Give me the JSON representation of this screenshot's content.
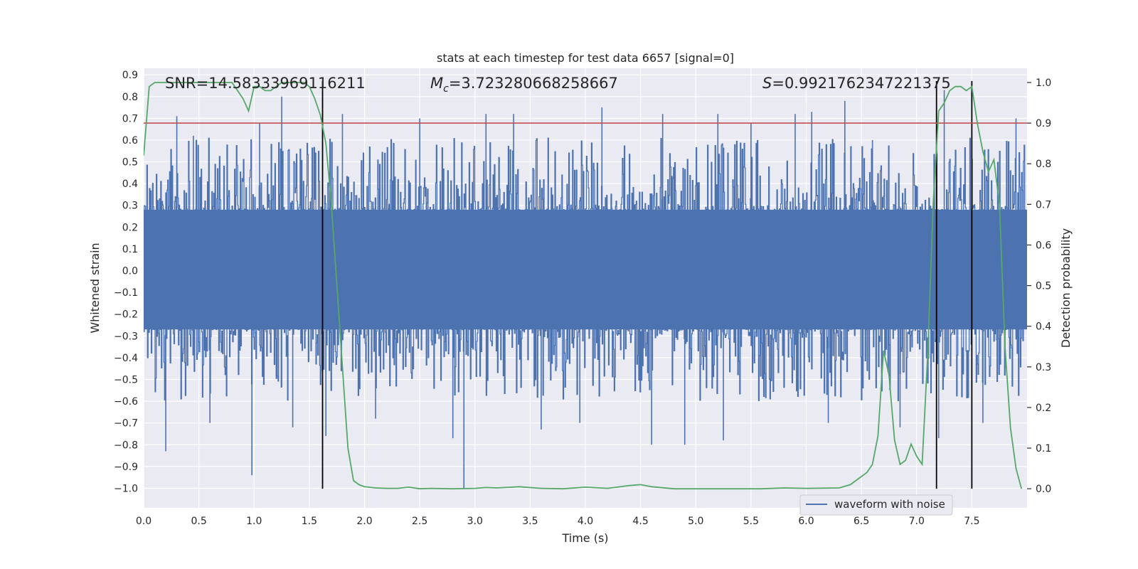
{
  "chart_data": {
    "type": "line",
    "title": "stats at each timestep for test data 6657 [signal=0]",
    "xlabel": "Time (s)",
    "ylabel_left": "Whitened strain",
    "ylabel_right": "Detection probability",
    "xlim": [
      0.0,
      8.0
    ],
    "ylim_left": [
      -1.09,
      0.93
    ],
    "ylim_right": [
      -0.047,
      1.035
    ],
    "x_ticks": [
      "0.0",
      "0.5",
      "1.0",
      "1.5",
      "2.0",
      "2.5",
      "3.0",
      "3.5",
      "4.0",
      "4.5",
      "5.0",
      "5.5",
      "6.0",
      "6.5",
      "7.0",
      "7.5"
    ],
    "x_tick_values": [
      0.0,
      0.5,
      1.0,
      1.5,
      2.0,
      2.5,
      3.0,
      3.5,
      4.0,
      4.5,
      5.0,
      5.5,
      6.0,
      6.5,
      7.0,
      7.5
    ],
    "y_left_ticks": [
      "0.9",
      "0.8",
      "0.7",
      "0.6",
      "0.5",
      "0.4",
      "0.3",
      "0.2",
      "0.1",
      "0.0",
      "−0.1",
      "−0.2",
      "−0.3",
      "−0.4",
      "−0.5",
      "−0.6",
      "−0.7",
      "−0.8",
      "−0.9",
      "−1.0"
    ],
    "y_left_tick_values": [
      0.9,
      0.8,
      0.7,
      0.6,
      0.5,
      0.4,
      0.3,
      0.2,
      0.1,
      0.0,
      -0.1,
      -0.2,
      -0.3,
      -0.4,
      -0.5,
      -0.6,
      -0.7,
      -0.8,
      -0.9,
      -1.0
    ],
    "y_right_ticks": [
      "1.0",
      "0.9",
      "0.8",
      "0.7",
      "0.6",
      "0.5",
      "0.4",
      "0.3",
      "0.2",
      "0.1",
      "0.0"
    ],
    "y_right_tick_values": [
      1.0,
      0.9,
      0.8,
      0.7,
      0.6,
      0.5,
      0.4,
      0.3,
      0.2,
      0.1,
      0.0
    ],
    "annotations": {
      "snr": "SNR=14.58333969116211",
      "mc_symbol": "M",
      "mc_sub": "c",
      "mc_value": "=3.723280668258667",
      "s_symbol": "S",
      "s_value": "=0.9921762347221375"
    },
    "legend": {
      "label": "waveform with noise",
      "placement": "lower-right"
    },
    "threshold": {
      "value": 0.9,
      "axis": "right",
      "color": "#c44e52"
    },
    "vlines": [
      1.62,
      7.18,
      7.5
    ],
    "vline_color": "#000000",
    "waveform": {
      "name": "waveform with noise",
      "color": "#4c72b0",
      "t_start": 0.0,
      "t_end": 7.99,
      "samples": 1400,
      "band_top": 0.28,
      "band_bottom": -0.27,
      "spikes": [
        {
          "t": 0.2,
          "v": -0.83
        },
        {
          "t": 0.3,
          "v": 0.71
        },
        {
          "t": 0.45,
          "v": 0.62
        },
        {
          "t": 0.6,
          "v": -0.7
        },
        {
          "t": 0.98,
          "v": -0.94
        },
        {
          "t": 1.05,
          "v": 0.68
        },
        {
          "t": 1.25,
          "v": 0.8
        },
        {
          "t": 1.35,
          "v": -0.72
        },
        {
          "t": 1.65,
          "v": -0.76
        },
        {
          "t": 1.8,
          "v": 0.72
        },
        {
          "t": 2.1,
          "v": -0.68
        },
        {
          "t": 2.5,
          "v": 0.7
        },
        {
          "t": 2.8,
          "v": -0.77
        },
        {
          "t": 2.9,
          "v": -1.0
        },
        {
          "t": 3.1,
          "v": 0.72
        },
        {
          "t": 3.35,
          "v": 0.72
        },
        {
          "t": 3.6,
          "v": -0.73
        },
        {
          "t": 3.95,
          "v": -0.7
        },
        {
          "t": 4.15,
          "v": 0.75
        },
        {
          "t": 4.6,
          "v": -0.8
        },
        {
          "t": 4.7,
          "v": 0.72
        },
        {
          "t": 4.9,
          "v": -0.8
        },
        {
          "t": 5.2,
          "v": 0.72
        },
        {
          "t": 5.25,
          "v": -0.78
        },
        {
          "t": 5.5,
          "v": 0.68
        },
        {
          "t": 5.9,
          "v": 0.72
        },
        {
          "t": 6.05,
          "v": 0.73
        },
        {
          "t": 6.2,
          "v": -0.7
        },
        {
          "t": 6.35,
          "v": 0.78
        },
        {
          "t": 6.6,
          "v": 0.6
        },
        {
          "t": 6.85,
          "v": -0.72
        },
        {
          "t": 7.2,
          "v": -0.77
        },
        {
          "t": 7.25,
          "v": 0.83
        },
        {
          "t": 7.6,
          "v": -0.7
        },
        {
          "t": 7.9,
          "v": 0.7
        }
      ]
    },
    "probability": {
      "name": "detection probability",
      "color": "#55a868",
      "x": [
        0.0,
        0.05,
        0.1,
        0.15,
        0.2,
        0.3,
        0.5,
        0.7,
        0.8,
        0.85,
        0.9,
        0.95,
        1.0,
        1.05,
        1.1,
        1.15,
        1.2,
        1.25,
        1.3,
        1.4,
        1.45,
        1.5,
        1.55,
        1.6,
        1.65,
        1.7,
        1.75,
        1.8,
        1.85,
        1.9,
        1.95,
        2.0,
        2.1,
        2.2,
        2.3,
        2.4,
        2.5,
        2.6,
        2.8,
        3.0,
        3.1,
        3.2,
        3.4,
        3.6,
        3.8,
        4.0,
        4.2,
        4.4,
        4.5,
        4.6,
        4.8,
        5.0,
        5.3,
        5.6,
        5.8,
        6.0,
        6.3,
        6.4,
        6.5,
        6.55,
        6.6,
        6.65,
        6.7,
        6.75,
        6.8,
        6.85,
        6.9,
        6.95,
        7.0,
        7.05,
        7.1,
        7.15,
        7.2,
        7.25,
        7.3,
        7.35,
        7.4,
        7.45,
        7.5,
        7.55,
        7.6,
        7.65,
        7.7,
        7.75,
        7.8,
        7.85,
        7.9,
        7.95
      ],
      "y": [
        0.82,
        0.99,
        1.0,
        1.0,
        1.0,
        1.0,
        1.0,
        1.0,
        1.0,
        0.98,
        0.96,
        0.93,
        0.99,
        0.99,
        0.98,
        0.98,
        0.99,
        1.0,
        1.0,
        1.0,
        1.0,
        0.99,
        0.96,
        0.92,
        0.85,
        0.7,
        0.5,
        0.3,
        0.1,
        0.02,
        0.01,
        0.005,
        0.002,
        0.001,
        0.001,
        0.004,
        0.0,
        0.001,
        0.0,
        0.001,
        0.003,
        0.002,
        0.005,
        0.001,
        0.0,
        0.004,
        0.001,
        0.008,
        0.01,
        0.005,
        0.0,
        0.0,
        0.0,
        0.0,
        0.002,
        0.001,
        0.002,
        0.01,
        0.03,
        0.04,
        0.06,
        0.13,
        0.34,
        0.28,
        0.12,
        0.06,
        0.07,
        0.11,
        0.08,
        0.06,
        0.33,
        0.7,
        0.93,
        0.95,
        0.98,
        0.99,
        0.99,
        0.98,
        0.99,
        0.9,
        0.83,
        0.78,
        0.81,
        0.7,
        0.35,
        0.15,
        0.05,
        0.0
      ]
    }
  }
}
